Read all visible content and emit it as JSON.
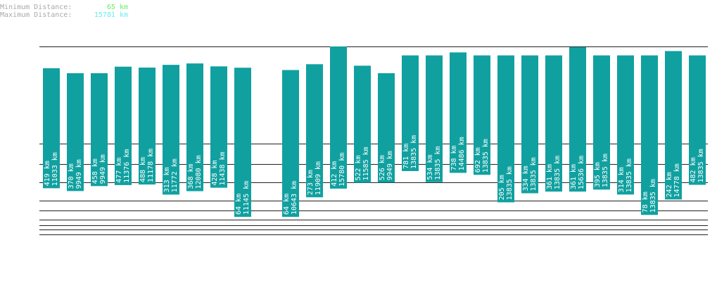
{
  "chart_data": {
    "type": "range_bar",
    "summary": [
      {
        "label": "Minimum Distance:",
        "value": 65,
        "value_label": "65 km",
        "color": "#66ee66"
      },
      {
        "label": "Maximum Distance:",
        "value": 15781,
        "value_label": "15781 km",
        "color": "#66eeee"
      }
    ],
    "color": "#11a0a0",
    "series": [
      {
        "values": [
          419,
          370,
          458,
          477,
          488,
          313,
          368,
          428,
          64,
          null,
          64,
          273,
          412,
          522,
          526,
          781,
          534,
          738,
          692,
          205,
          334,
          361,
          361,
          395,
          314,
          78,
          242,
          482
        ],
        "value_labels": [
          "419 km",
          "370 km",
          "458 km",
          "477 km",
          "488 km",
          "313 km",
          "368 km",
          "428 km",
          "64 km",
          null,
          "64 km",
          "273 km",
          "412 km",
          "522 km",
          "526 km",
          "781 km",
          "534 km",
          "738 km",
          "692 km",
          "205 km",
          "334 km",
          "361 km",
          "361 km",
          "395 km",
          "314 km",
          "78 km",
          "242 km",
          "482 km"
        ]
      },
      {
        "values": [
          11033,
          9949,
          9949,
          11376,
          11178,
          11772,
          12080,
          11438,
          11145,
          null,
          10643,
          11909,
          15780,
          11585,
          9949,
          13835,
          13835,
          14486,
          13835,
          13835,
          13835,
          13835,
          15636,
          13835,
          13835,
          13835,
          14778,
          13835
        ],
        "value_labels": [
          "11033 km",
          "9949 km",
          "9949 km",
          "11376 km",
          "11178 km",
          "11772 km",
          "12080 km",
          "11438 km",
          "11145 km",
          null,
          "10643 km",
          "11909 km",
          "15780 km",
          "11585 km",
          "9949 km",
          "13835 km",
          "13835 km",
          "14486 km",
          "13835 km",
          "13835 km",
          "13835 km",
          "13835 km",
          "15636 km",
          "13835 km",
          "13835 km",
          "13835 km",
          "14778 km",
          "13835 km"
        ]
      }
    ]
  }
}
